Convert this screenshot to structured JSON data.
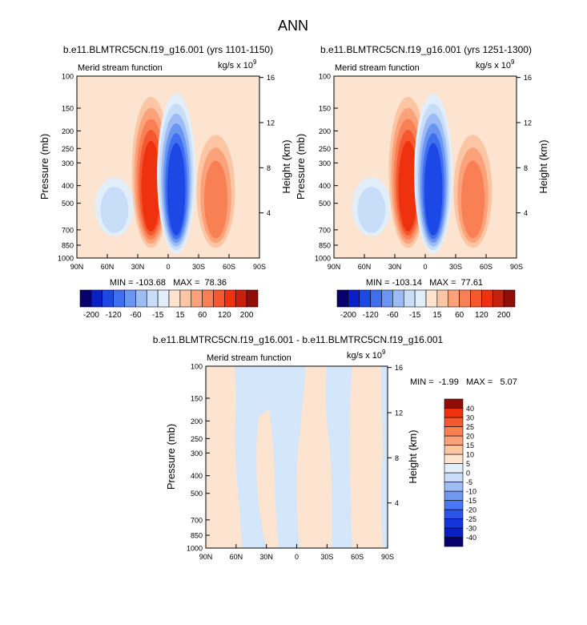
{
  "page_title": "ANN",
  "chart_data": [
    {
      "type": "contour",
      "id": "panel1",
      "title": "b.e11.BLMTRC5CN.f19_g16.001 (yrs 1101-1150)",
      "left_label": "Merid stream function",
      "units_text": "kg/s x 10",
      "units_exp": "9",
      "ylabel": "Pressure (mb)",
      "ylabel_right": "Height (km)",
      "y_ticks": [
        "100",
        "150",
        "200",
        "250",
        "300",
        "400",
        "500",
        "700",
        "850",
        "1000"
      ],
      "y_values": [
        100,
        150,
        200,
        250,
        300,
        400,
        500,
        700,
        850,
        1000
      ],
      "height_ticks": [
        "16",
        "12",
        "8",
        "4"
      ],
      "height_values": [
        16,
        12,
        8,
        4
      ],
      "x_ticks": [
        "90N",
        "60N",
        "30N",
        "0",
        "30S",
        "60S",
        "90S"
      ],
      "x_values": [
        90,
        60,
        30,
        0,
        -30,
        -60,
        -90
      ],
      "stats": "MIN = -103.68   MAX =  78.36",
      "levels": [
        "-200",
        "-120",
        "-60",
        "-15",
        "15",
        "60",
        "120",
        "200"
      ],
      "colors": [
        "#08006b",
        "#0a1fc7",
        "#1d48e6",
        "#3f6fef",
        "#6a96f2",
        "#9dbcf5",
        "#c7ddf8",
        "#e2eefa",
        "#fde4d0",
        "#fcc6a5",
        "#fba27b",
        "#f97f55",
        "#f5582e",
        "#ee3210",
        "#c7200c",
        "#8f0f08"
      ],
      "features": [
        {
          "lat": 17,
          "p_top": 130,
          "p_bot": 880,
          "level": 5
        },
        {
          "lat": -8,
          "p_top": 125,
          "p_bot": 950,
          "level": -6
        },
        {
          "lat": -47,
          "p_top": 210,
          "p_bot": 880,
          "level": 3
        },
        {
          "lat": 53,
          "p_top": 360,
          "p_bot": 760,
          "level": -2
        }
      ]
    },
    {
      "type": "contour",
      "id": "panel2",
      "title": "b.e11.BLMTRC5CN.f19_g16.001 (yrs 1251-1300)",
      "left_label": "Merid stream function",
      "units_text": "kg/s x 10",
      "units_exp": "9",
      "ylabel": "Pressure (mb)",
      "ylabel_right": "Height (km)",
      "y_ticks": [
        "100",
        "150",
        "200",
        "250",
        "300",
        "400",
        "500",
        "700",
        "850",
        "1000"
      ],
      "y_values": [
        100,
        150,
        200,
        250,
        300,
        400,
        500,
        700,
        850,
        1000
      ],
      "height_ticks": [
        "16",
        "12",
        "8",
        "4"
      ],
      "height_values": [
        16,
        12,
        8,
        4
      ],
      "x_ticks": [
        "90N",
        "60N",
        "30N",
        "0",
        "30S",
        "60S",
        "90S"
      ],
      "x_values": [
        90,
        60,
        30,
        0,
        -30,
        -60,
        -90
      ],
      "stats": "MIN = -103.14   MAX =  77.61",
      "levels": [
        "-200",
        "-120",
        "-60",
        "-15",
        "15",
        "60",
        "120",
        "200"
      ],
      "colors": [
        "#08006b",
        "#0a1fc7",
        "#1d48e6",
        "#3f6fef",
        "#6a96f2",
        "#9dbcf5",
        "#c7ddf8",
        "#e2eefa",
        "#fde4d0",
        "#fcc6a5",
        "#fba27b",
        "#f97f55",
        "#f5582e",
        "#ee3210",
        "#c7200c",
        "#8f0f08"
      ],
      "features": [
        {
          "lat": 17,
          "p_top": 130,
          "p_bot": 880,
          "level": 5
        },
        {
          "lat": -8,
          "p_top": 125,
          "p_bot": 950,
          "level": -6
        },
        {
          "lat": -47,
          "p_top": 210,
          "p_bot": 880,
          "level": 3
        },
        {
          "lat": 53,
          "p_top": 360,
          "p_bot": 760,
          "level": -2
        }
      ]
    },
    {
      "type": "contour",
      "id": "panel3",
      "title": "b.e11.BLMTRC5CN.f19_g16.001 - b.e11.BLMTRC5CN.f19_g16.001",
      "left_label": "Merid stream function",
      "units_text": "kg/s x 10",
      "units_exp": "9",
      "ylabel": "Pressure (mb)",
      "ylabel_right": "Height (km)",
      "y_ticks": [
        "100",
        "150",
        "200",
        "250",
        "300",
        "400",
        "500",
        "700",
        "850",
        "1000"
      ],
      "y_values": [
        100,
        150,
        200,
        250,
        300,
        400,
        500,
        700,
        850,
        1000
      ],
      "height_ticks": [
        "16",
        "12",
        "8",
        "4"
      ],
      "height_values": [
        16,
        12,
        8,
        4
      ],
      "x_ticks": [
        "90N",
        "60N",
        "30N",
        "0",
        "30S",
        "60S",
        "90S"
      ],
      "x_values": [
        90,
        60,
        30,
        0,
        -30,
        -60,
        -90
      ],
      "stats": "MIN =  -1.99   MAX =   5.07",
      "levels": [
        "-40",
        "-30",
        "-25",
        "-20",
        "-15",
        "-10",
        "-5",
        "0",
        "5",
        "10",
        "15",
        "20",
        "25",
        "30",
        "40"
      ],
      "colors": [
        "#08006b",
        "#0a1fc7",
        "#1436d8",
        "#2b55e8",
        "#4a76ef",
        "#7098f2",
        "#9fbcf5",
        "#c9dcf8",
        "#e2eefa",
        "#fde4d0",
        "#fcc6a5",
        "#fba27b",
        "#f97f55",
        "#f5582e",
        "#ee3210",
        "#8f0f08"
      ]
    }
  ]
}
